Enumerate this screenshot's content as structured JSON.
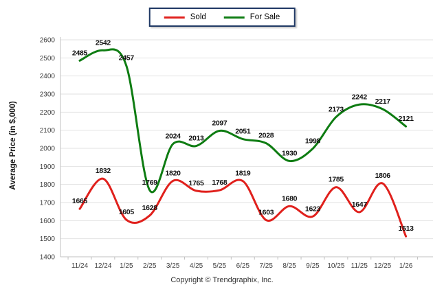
{
  "legend": {
    "items": [
      {
        "label": "Sold",
        "color": "#e0201c"
      },
      {
        "label": "For Sale",
        "color": "#0e7c12"
      }
    ],
    "border_color": "#1f3864"
  },
  "chart_data": {
    "type": "line",
    "categories": [
      "11/24",
      "12/24",
      "1/25",
      "2/25",
      "3/25",
      "4/25",
      "5/25",
      "6/25",
      "7/25",
      "8/25",
      "9/25",
      "10/25",
      "11/25",
      "12/25",
      "1/26"
    ],
    "series": [
      {
        "name": "Sold",
        "color": "#e0201c",
        "values": [
          1665,
          1832,
          1605,
          1628,
          1820,
          1765,
          1768,
          1819,
          1603,
          1680,
          1623,
          1785,
          1647,
          1806,
          1513
        ]
      },
      {
        "name": "For Sale",
        "color": "#0e7c12",
        "values": [
          2485,
          2542,
          2457,
          1769,
          2024,
          2013,
          2097,
          2051,
          2028,
          1930,
          1998,
          2173,
          2242,
          2217,
          2121
        ]
      }
    ],
    "title": "",
    "xlabel": "",
    "ylabel": "Average Price (in $,000)",
    "ylim": [
      1400,
      2600
    ],
    "ytick_step": 100,
    "grid": true,
    "smooth": true,
    "data_labels": true,
    "legend_position": "top-center",
    "grid_color": "#e2e2e2",
    "axis_color": "#c0c0c0",
    "tick_label_color": "#404040",
    "data_label_color": "#111111"
  },
  "footer": {
    "copyright": "Copyright © Trendgraphix, Inc."
  }
}
